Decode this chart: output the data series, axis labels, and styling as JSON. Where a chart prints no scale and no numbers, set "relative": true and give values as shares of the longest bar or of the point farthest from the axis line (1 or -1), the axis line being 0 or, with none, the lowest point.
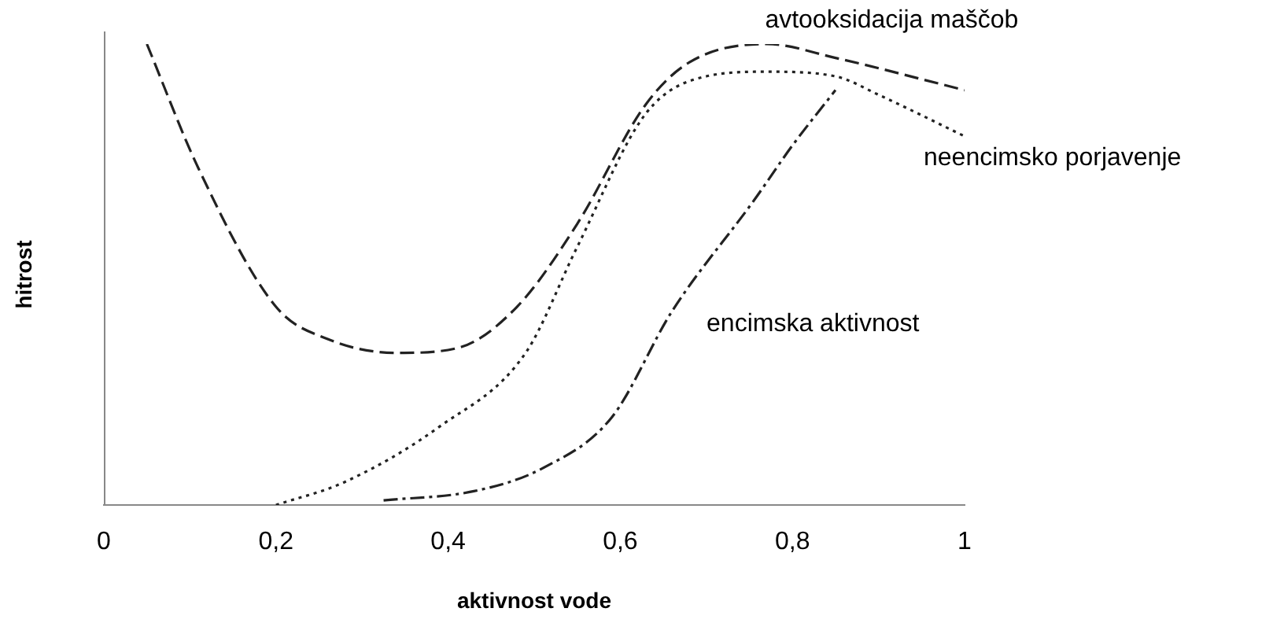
{
  "chart_data": {
    "type": "line",
    "relative": true,
    "xlabel": "aktivnost vode",
    "ylabel": "hitrost",
    "xlim": [
      0,
      1
    ],
    "xticks": [
      0,
      {
        "value": 0.2,
        "label": "0,2"
      },
      {
        "value": 0.4,
        "label": "0,4"
      },
      {
        "value": 0.6,
        "label": "0,6"
      },
      {
        "value": 0.8,
        "label": "0,8"
      },
      1
    ],
    "grid": false,
    "legend": false,
    "marker": "none",
    "series": [
      {
        "name": "avtooksidacija maščob",
        "color": "#222222",
        "line_style": "dashed",
        "x": [
          0.05,
          0.11,
          0.2,
          0.26,
          0.34,
          0.41,
          0.48,
          0.55,
          0.63,
          0.68,
          0.77,
          0.85,
          1.0
        ],
        "values": [
          1.0,
          0.73,
          0.43,
          0.36,
          0.33,
          0.34,
          0.43,
          0.61,
          0.87,
          0.96,
          1.0,
          0.97,
          0.9
        ]
      },
      {
        "name": "neencimsko porjavenje",
        "color": "#222222",
        "line_style": "dotted",
        "x": [
          0.2,
          0.28,
          0.39,
          0.49,
          0.55,
          0.63,
          0.7,
          0.77,
          0.85,
          0.9,
          1.0
        ],
        "values": [
          0,
          0.05,
          0.17,
          0.33,
          0.56,
          0.85,
          0.93,
          0.94,
          0.93,
          0.89,
          0.8
        ]
      },
      {
        "name": "encimska aktivnost",
        "color": "#222222",
        "line_style": "dashdot",
        "x": [
          0.325,
          0.43,
          0.51,
          0.59,
          0.66,
          0.755,
          0.8,
          0.85
        ],
        "values": [
          0.01,
          0.03,
          0.08,
          0.19,
          0.42,
          0.66,
          0.78,
          0.9
        ]
      }
    ]
  }
}
